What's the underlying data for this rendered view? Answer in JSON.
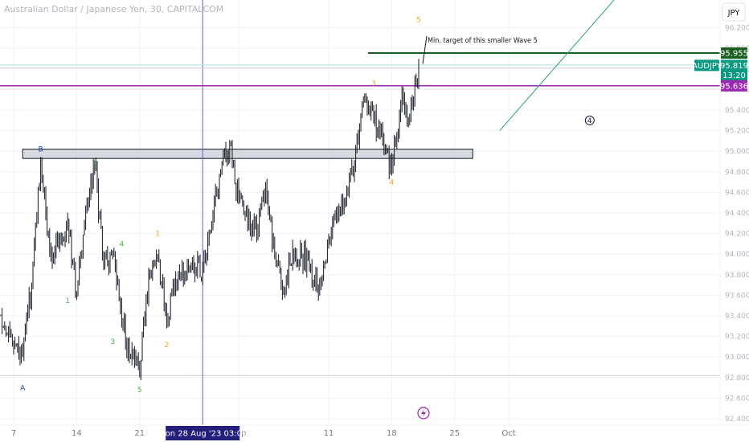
{
  "chart_title": "Australian Dollar / Japanese Yen, 30, CAPITALCOM",
  "currency_button": "JPY",
  "annotation_text": "Min. target of this smaller Wave 5",
  "colors": {
    "candles": "#131722",
    "target_line": "#1b5e20",
    "magenta_line": "#9c27b0",
    "last_price": "#089981",
    "crosshair": "#6a5acd",
    "wave_blue": "#1e3fa8",
    "wave_green": "#4caf50",
    "wave_orange": "#f5a623",
    "trend_line": "#26a17b",
    "crosshair_label_bg": "#221f7c"
  },
  "chart_data": {
    "type": "candlestick",
    "symbol": "AUDJPY",
    "timeframe": "30",
    "ylim": [
      92.4,
      96.4
    ],
    "y_ticks": [
      "96.200",
      "96.000",
      "95.800",
      "95.600",
      "95.400",
      "95.200",
      "95.000",
      "94.800",
      "94.600",
      "94.400",
      "94.200",
      "94.000",
      "93.800",
      "93.600",
      "93.400",
      "93.200",
      "93.000",
      "92.800",
      "92.600",
      "92.400"
    ],
    "x_ticks": [
      "7",
      "14",
      "21",
      "Sep",
      "11",
      "18",
      "25",
      "Oct"
    ],
    "price_path": [
      {
        "date": "2023-08-04",
        "close": 93.8
      },
      {
        "date": "2023-08-06",
        "close": 93.3
      },
      {
        "date": "2023-08-08",
        "close": 93.05
      },
      {
        "date": "2023-08-09",
        "close": 93.7
      },
      {
        "date": "2023-08-10",
        "close": 94.9
      },
      {
        "date": "2023-08-11",
        "close": 94.0
      },
      {
        "date": "2023-08-13",
        "close": 94.3
      },
      {
        "date": "2023-08-14",
        "close": 93.6
      },
      {
        "date": "2023-08-15",
        "close": 94.4
      },
      {
        "date": "2023-08-16",
        "close": 94.85
      },
      {
        "date": "2023-08-17",
        "close": 93.9
      },
      {
        "date": "2023-08-18",
        "close": 94.0
      },
      {
        "date": "2023-08-19",
        "close": 93.35
      },
      {
        "date": "2023-08-20",
        "close": 93.0
      },
      {
        "date": "2023-08-21",
        "close": 92.85
      },
      {
        "date": "2023-08-22",
        "close": 93.8
      },
      {
        "date": "2023-08-23",
        "close": 94.0
      },
      {
        "date": "2023-08-24",
        "close": 93.35
      },
      {
        "date": "2023-08-25",
        "close": 93.75
      },
      {
        "date": "2023-08-27",
        "close": 93.9
      },
      {
        "date": "2023-08-28",
        "close": 93.85
      },
      {
        "date": "2023-08-29",
        "close": 94.3
      },
      {
        "date": "2023-08-30",
        "close": 94.8
      },
      {
        "date": "2023-08-31",
        "close": 95.05
      },
      {
        "date": "2023-09-01",
        "close": 94.5
      },
      {
        "date": "2023-09-03",
        "close": 94.2
      },
      {
        "date": "2023-09-04",
        "close": 94.7
      },
      {
        "date": "2023-09-05",
        "close": 94.0
      },
      {
        "date": "2023-09-06",
        "close": 93.65
      },
      {
        "date": "2023-09-07",
        "close": 94.05
      },
      {
        "date": "2023-09-08",
        "close": 94.0
      },
      {
        "date": "2023-09-10",
        "close": 93.7
      },
      {
        "date": "2023-09-11",
        "close": 94.15
      },
      {
        "date": "2023-09-12",
        "close": 94.4
      },
      {
        "date": "2023-09-13",
        "close": 94.6
      },
      {
        "date": "2023-09-14",
        "close": 95.0
      },
      {
        "date": "2023-09-15",
        "close": 95.55
      },
      {
        "date": "2023-09-17",
        "close": 95.1
      },
      {
        "date": "2023-09-18",
        "close": 94.8
      },
      {
        "date": "2023-09-19",
        "close": 95.45
      },
      {
        "date": "2023-09-20",
        "close": 95.35
      },
      {
        "date": "2023-09-21",
        "close": 95.82
      }
    ],
    "horizontal_lines": [
      {
        "price": 95.955,
        "label": "95.955",
        "color": "#1b5e20"
      },
      {
        "price": 95.636,
        "label": "95.636",
        "color": "#9c27b0"
      }
    ],
    "last_price": {
      "symbol": "AUDJPY",
      "price": "95.819",
      "countdown": "13:20"
    },
    "zone": {
      "from": 94.93,
      "to": 95.02,
      "start": "2023-08-08",
      "end": "2023-09-27"
    },
    "crosshair": {
      "date": "2023-08-28",
      "label": "Mon 28 Aug '23   03:00"
    },
    "wave_labels": [
      {
        "text": "A",
        "date": "2023-08-08",
        "price": 92.7,
        "group": "blue"
      },
      {
        "text": "B",
        "date": "2023-08-10",
        "price": 95.02,
        "group": "blue"
      },
      {
        "text": "1",
        "date": "2023-08-13",
        "price": 93.55,
        "group": "green"
      },
      {
        "text": "2",
        "date": "2023-08-16",
        "price": 94.9,
        "group": "green"
      },
      {
        "text": "3",
        "date": "2023-08-18",
        "price": 93.15,
        "group": "green"
      },
      {
        "text": "4",
        "date": "2023-08-19",
        "price": 94.1,
        "group": "green"
      },
      {
        "text": "5",
        "date": "2023-08-21",
        "price": 92.68,
        "group": "green"
      },
      {
        "text": "1",
        "date": "2023-08-23",
        "price": 94.2,
        "group": "orange"
      },
      {
        "text": "2",
        "date": "2023-08-24",
        "price": 93.12,
        "group": "orange"
      },
      {
        "text": "3",
        "date": "2023-09-16",
        "price": 95.66,
        "group": "orange"
      },
      {
        "text": "4",
        "date": "2023-09-18",
        "price": 94.7,
        "group": "orange"
      },
      {
        "text": "5",
        "date": "2023-09-21",
        "price": 96.28,
        "group": "orange"
      }
    ],
    "circled_label": {
      "text": "4",
      "date": "2023-10-10",
      "price": 95.3
    },
    "trend_line": {
      "from": {
        "date": "2023-09-30",
        "price": 95.2
      },
      "to": {
        "date": "2023-10-14",
        "price": 96.6
      }
    }
  }
}
